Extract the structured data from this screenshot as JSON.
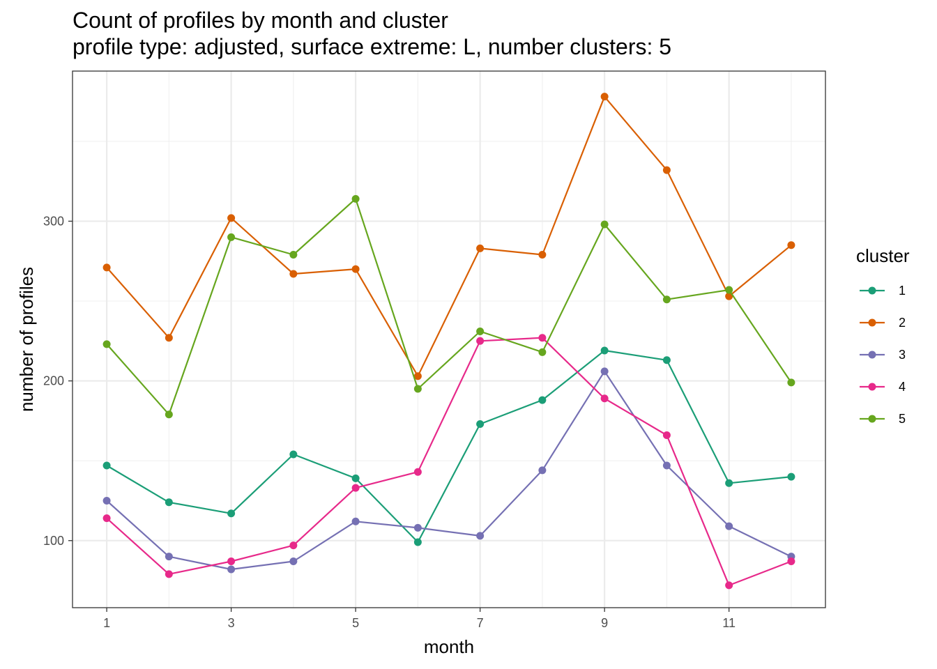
{
  "chart_data": {
    "type": "line",
    "title": "Count of profiles by month and cluster",
    "subtitle": "profile type: adjusted, surface extreme: L, number clusters: 5",
    "xlabel": "month",
    "ylabel": "number of profiles",
    "x": [
      1,
      2,
      3,
      4,
      5,
      6,
      7,
      8,
      9,
      10,
      11,
      12
    ],
    "x_ticks": [
      1,
      3,
      5,
      7,
      9,
      11
    ],
    "y_ticks": [
      100,
      200,
      300
    ],
    "xlim": [
      0.45,
      12.55
    ],
    "ylim": [
      58,
      394
    ],
    "grid": true,
    "legend_title": "cluster",
    "legend_position": "right",
    "series": [
      {
        "name": "1",
        "color": "#1B9E77",
        "values": [
          147,
          124,
          117,
          154,
          139,
          99,
          173,
          188,
          219,
          213,
          136,
          140
        ]
      },
      {
        "name": "2",
        "color": "#D95F02",
        "values": [
          271,
          227,
          302,
          267,
          270,
          203,
          283,
          279,
          378,
          332,
          253,
          285
        ]
      },
      {
        "name": "3",
        "color": "#7570B3",
        "values": [
          125,
          90,
          82,
          87,
          112,
          108,
          103,
          144,
          206,
          147,
          109,
          90
        ]
      },
      {
        "name": "4",
        "color": "#E7298A",
        "values": [
          114,
          79,
          87,
          97,
          133,
          143,
          225,
          227,
          189,
          166,
          72,
          87
        ]
      },
      {
        "name": "5",
        "color": "#66A61E",
        "values": [
          223,
          179,
          290,
          279,
          314,
          195,
          231,
          218,
          298,
          251,
          257,
          199
        ]
      }
    ]
  }
}
